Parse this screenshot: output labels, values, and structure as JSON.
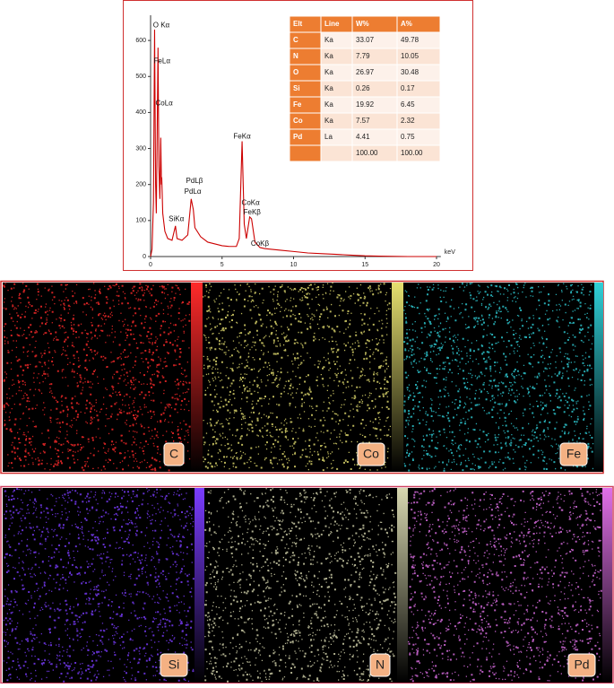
{
  "chart_data": {
    "type": "line",
    "x_label": "keV",
    "xlim": [
      0,
      20.3
    ],
    "ylim": [
      0,
      670
    ],
    "xticks": [
      0,
      5,
      10,
      15,
      20
    ],
    "yticks": [
      0,
      100,
      200,
      300,
      400,
      500,
      600
    ],
    "series": [
      {
        "color": "#cc0000",
        "x": [
          0,
          0.1,
          0.2,
          0.28,
          0.35,
          0.4,
          0.45,
          0.52,
          0.58,
          0.65,
          0.71,
          0.76,
          0.78,
          0.85,
          1.0,
          1.2,
          1.5,
          1.74,
          1.85,
          2.2,
          2.6,
          2.84,
          2.99,
          3.1,
          3.5,
          4,
          4.5,
          5,
          5.5,
          6,
          6.2,
          6.4,
          6.55,
          6.7,
          6.93,
          7.06,
          7.3,
          7.65,
          8,
          9,
          10,
          11,
          12,
          13,
          14,
          15,
          16,
          18,
          20
        ],
        "values": [
          0,
          20,
          150,
          630,
          200,
          120,
          300,
          580,
          250,
          160,
          330,
          200,
          220,
          120,
          70,
          50,
          45,
          85,
          50,
          45,
          60,
          160,
          130,
          80,
          55,
          40,
          35,
          30,
          28,
          28,
          50,
          320,
          90,
          50,
          110,
          105,
          40,
          25,
          22,
          18,
          14,
          10,
          8,
          6,
          4,
          2,
          1,
          0,
          0
        ]
      }
    ],
    "annotations": [
      {
        "text": "O Kα",
        "x": 0.75,
        "y": 642
      },
      {
        "text": "FeLα",
        "x": 0.8,
        "y": 542
      },
      {
        "text": "CoLα",
        "x": 0.95,
        "y": 425
      },
      {
        "text": "FeKα",
        "x": 6.4,
        "y": 333
      },
      {
        "text": "PdLβ",
        "x": 3.07,
        "y": 209
      },
      {
        "text": "PdLα",
        "x": 2.95,
        "y": 179
      },
      {
        "text": "SiKα",
        "x": 1.8,
        "y": 104
      },
      {
        "text": "CoKα",
        "x": 7.0,
        "y": 149
      },
      {
        "text": "FeKβ",
        "x": 7.1,
        "y": 122
      },
      {
        "text": "CoKβ",
        "x": 7.65,
        "y": 35
      }
    ]
  },
  "table": {
    "columns": [
      "Elt",
      "Line",
      "W%",
      "A%"
    ],
    "rows": [
      [
        "C",
        "Ka",
        "33.07",
        "49.78"
      ],
      [
        "N",
        "Ka",
        "7.79",
        "10.05"
      ],
      [
        "O",
        "Ka",
        "26.97",
        "30.48"
      ],
      [
        "Si",
        "Ka",
        "0.26",
        "0.17"
      ],
      [
        "Fe",
        "Ka",
        "19.92",
        "6.45"
      ],
      [
        "Co",
        "Ka",
        "7.57",
        "2.32"
      ],
      [
        "Pd",
        "La",
        "4.41",
        "0.75"
      ],
      [
        null,
        null,
        "100.00",
        "100.00"
      ]
    ]
  },
  "maps": [
    {
      "label": "C",
      "color": "#ff2a2a"
    },
    {
      "label": "Co",
      "color": "#e6e070"
    },
    {
      "label": "Fe",
      "color": "#30d0d8"
    },
    {
      "label": "Si",
      "color": "#7a3cff"
    },
    {
      "label": "N",
      "color": "#d8d8b0"
    },
    {
      "label": "Pd",
      "color": "#e070e8"
    }
  ]
}
